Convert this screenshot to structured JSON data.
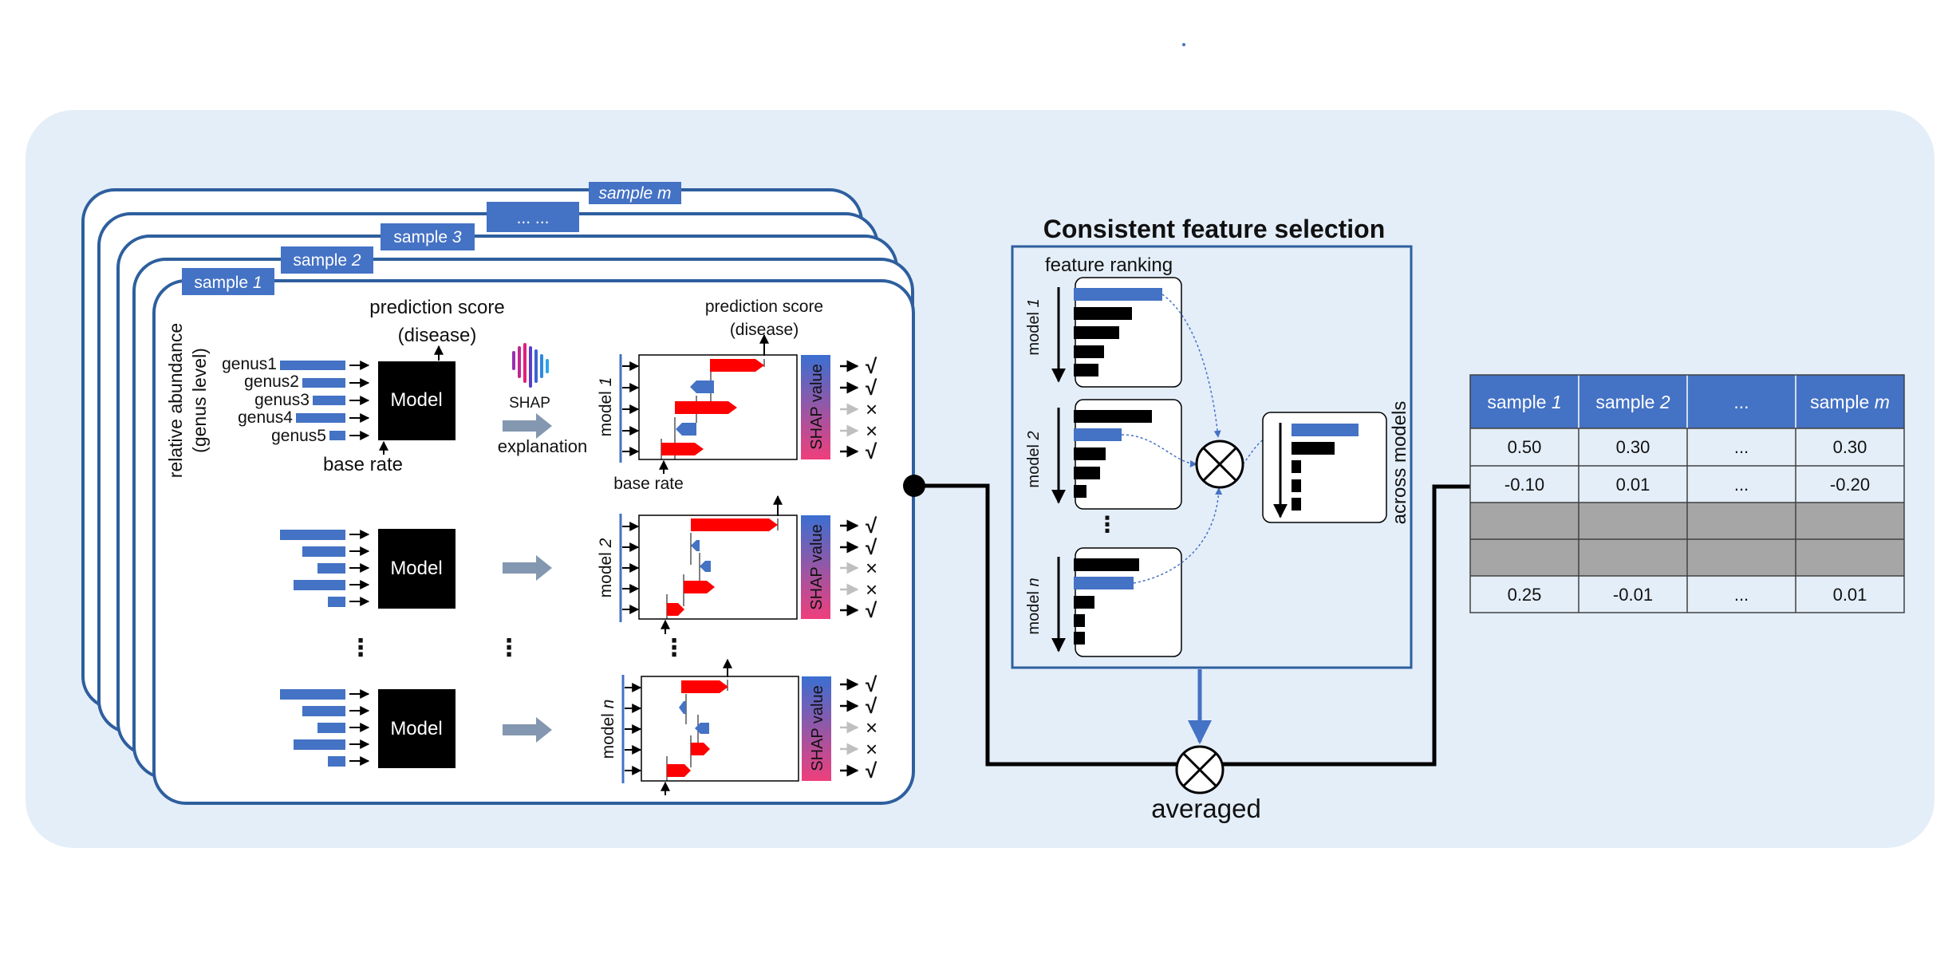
{
  "sample_tabs": [
    {
      "prefix": "sample ",
      "num": "1"
    },
    {
      "prefix": "sample ",
      "num": "2"
    },
    {
      "prefix": "sample ",
      "num": "3"
    },
    {
      "prefix": "",
      "num": "... ..."
    },
    {
      "prefix": "sample ",
      "num": "m"
    }
  ],
  "left_panel": {
    "relative_abundance_line1": "relative abundance",
    "relative_abundance_line2": "(genus level)",
    "genera": [
      "genus1",
      "genus2",
      "genus3",
      "genus4",
      "genus5"
    ],
    "model_label": "Model",
    "prediction_score_line1": "prediction score",
    "prediction_score_line2": "(disease)",
    "base_rate": "base rate",
    "shap_logo_text": "SHAP",
    "explanation": "explanation",
    "model_rows": [
      {
        "prefix": "model ",
        "num": "1"
      },
      {
        "prefix": "model ",
        "num": "2"
      },
      {
        "prefix": "model ",
        "num": "n"
      }
    ],
    "shap_value": "SHAP value",
    "check_mark": "√",
    "cross_mark": "×",
    "vdots": "⋮"
  },
  "middle_panel": {
    "title": "Consistent feature selection",
    "feature_ranking": "feature ranking",
    "model_rows": [
      {
        "prefix": "model ",
        "num": "1"
      },
      {
        "prefix": "model ",
        "num": "2"
      },
      {
        "prefix": "model ",
        "num": "n"
      }
    ],
    "across_models": "across models",
    "averaged": "averaged",
    "vdots": "⋮"
  },
  "table": {
    "headers": [
      {
        "prefix": "sample ",
        "num": "1"
      },
      {
        "prefix": "sample ",
        "num": "2"
      },
      {
        "prefix": "",
        "num": "..."
      },
      {
        "prefix": "sample ",
        "num": "m"
      }
    ],
    "rows": [
      [
        "0.50",
        "0.30",
        "...",
        "0.30"
      ],
      [
        "-0.10",
        "0.01",
        "...",
        "-0.20"
      ],
      [
        "",
        "",
        "",
        ""
      ],
      [
        "",
        "",
        "",
        ""
      ],
      [
        "0.25",
        "-0.01",
        "...",
        "0.01"
      ]
    ]
  },
  "colors": {
    "background_panel": "#e4eef9",
    "frame_blue": "#2e5f9e",
    "tab_blue": "#4472c4",
    "bar_blue": "#4472c4",
    "shap_red": "#ff0000",
    "model_black": "#000000",
    "arrow_gray": "#8497b0",
    "row_gray": "#a6a6a6",
    "shap_gradient_top": "#3b6fd1",
    "shap_gradient_bottom": "#ef3f7c"
  }
}
